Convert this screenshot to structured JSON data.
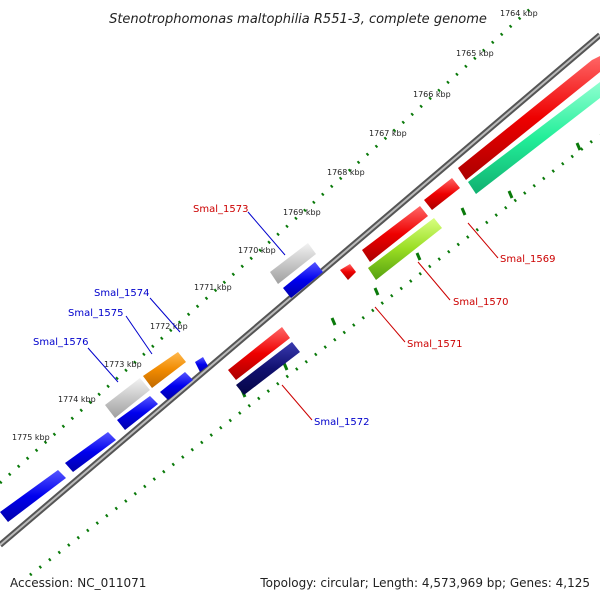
{
  "title": "Stenotrophomonas maltophilia R551-3, complete genome",
  "ticks": [
    "1764 kbp",
    "1765 kbp",
    "1766 kbp",
    "1767 kbp",
    "1768 kbp",
    "1769 kbp",
    "1770 kbp",
    "1771 kbp",
    "1772 kbp",
    "1773 kbp",
    "1774 kbp",
    "1775 kbp"
  ],
  "genes": [
    {
      "name": "Smal_1569",
      "color": "#cc0000"
    },
    {
      "name": "Smal_1570",
      "color": "#cc0000"
    },
    {
      "name": "Smal_1571",
      "color": "#cc0000"
    },
    {
      "name": "Smal_1572",
      "color": "#0000cc"
    },
    {
      "name": "Smal_1573",
      "color": "#cc0000"
    },
    {
      "name": "Smal_1574",
      "color": "#0000cc"
    },
    {
      "name": "Smal_1575",
      "color": "#0000cc"
    },
    {
      "name": "Smal_1576",
      "color": "#0000cc"
    }
  ],
  "footer": {
    "accession": "Accession: NC_011071",
    "summary": "Topology: circular; Length: 4,573,969 bp; Genes: 4,125"
  }
}
